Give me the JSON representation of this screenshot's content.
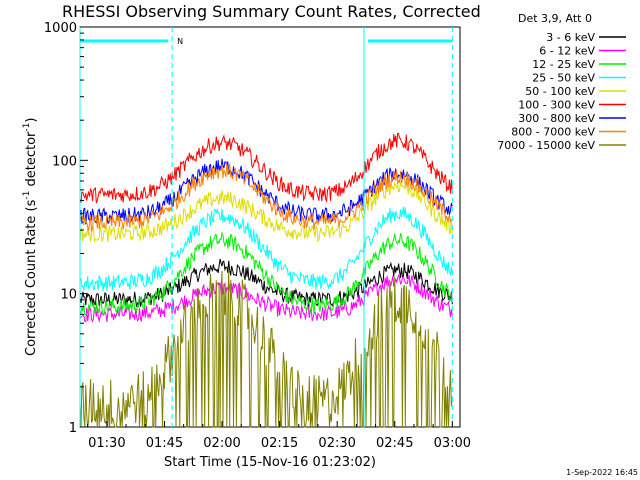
{
  "chart_data": {
    "type": "line",
    "title": "RHESSI Observing Summary Count Rates, Corrected",
    "xlabel": "Start Time (15-Nov-16 01:23:02)",
    "ylabel": "Corrected Count Rate (s⁻¹ detector⁻¹)",
    "ylabel_main": "Corrected Count Rate (s",
    "ylabel_sup1": "-1",
    "ylabel_mid": " detector",
    "ylabel_sup2": "-1",
    "ylabel_end": ")",
    "yscale": "log",
    "ylim": [
      1,
      1000
    ],
    "xlim_minutes": [
      83,
      182
    ],
    "x_ticks": [
      {
        "label": "01:30",
        "minute": 90
      },
      {
        "label": "01:45",
        "minute": 105
      },
      {
        "label": "02:00",
        "minute": 120
      },
      {
        "label": "02:15",
        "minute": 135
      },
      {
        "label": "02:30",
        "minute": 150
      },
      {
        "label": "02:45",
        "minute": 165
      },
      {
        "label": "03:00",
        "minute": 180
      }
    ],
    "y_ticks": [
      {
        "label": "1",
        "value": 1
      },
      {
        "label": "10",
        "value": 10
      },
      {
        "label": "100",
        "value": 100
      },
      {
        "label": "1000",
        "value": 1000
      }
    ],
    "legend_title": "Det 3,9, Att 0",
    "legend_placement": "right",
    "series": [
      {
        "name": "3 - 6 keV",
        "color": "#000000",
        "base": 9,
        "p1": 16,
        "p2": 15
      },
      {
        "name": "6 - 12 keV",
        "color": "#ff00ff",
        "base": 7,
        "p1": 11,
        "p2": 13
      },
      {
        "name": "12 - 25 keV",
        "color": "#00ee00",
        "base": 8,
        "p1": 25,
        "p2": 25
      },
      {
        "name": "25 - 50 keV",
        "color": "#00ffff",
        "base": 12,
        "p1": 38,
        "p2": 40
      },
      {
        "name": "50 - 100 keV",
        "color": "#dddd00",
        "base": 28,
        "p1": 52,
        "p2": 65
      },
      {
        "name": "100 - 300 keV",
        "color": "#ff0000",
        "base": 55,
        "p1": 135,
        "p2": 140
      },
      {
        "name": "300 - 800 keV",
        "color": "#0000ff",
        "base": 38,
        "p1": 90,
        "p2": 80
      },
      {
        "name": "800 - 7000 keV",
        "color": "#ff8000",
        "base": 34,
        "p1": 84,
        "p2": 75
      },
      {
        "name": "7000 - 15000 keV",
        "color": "#808000",
        "base": 1.5,
        "p1": 10,
        "p2": 9
      }
    ],
    "peak_centers_minutes": [
      120,
      166
    ],
    "peak_widths_minutes": [
      11,
      9
    ],
    "background_level_minutes": 143,
    "night_boundaries_minutes": [
      83,
      107,
      157,
      180
    ],
    "saa_bars_minutes": [
      [
        83,
        106
      ],
      [
        158,
        180
      ]
    ],
    "flag_letter": "N"
  },
  "timestamp": "1-Sep-2022 16:45"
}
